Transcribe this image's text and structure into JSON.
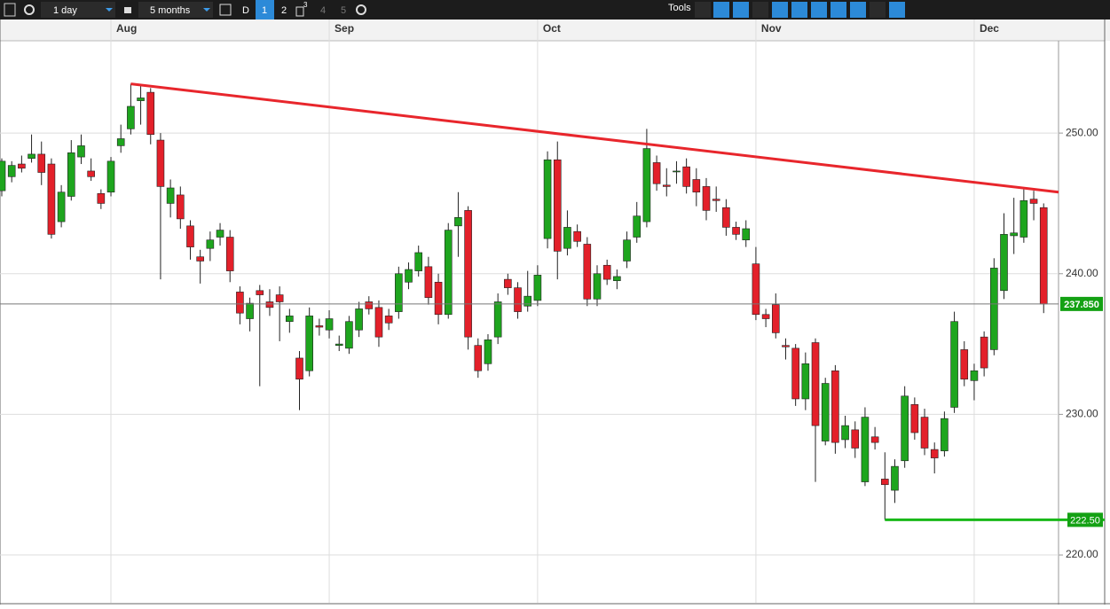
{
  "toolbar": {
    "interval": "1 day",
    "range": "5 months",
    "mode": "D",
    "layouts": [
      "1",
      "2",
      "3",
      "4",
      "5"
    ],
    "tools": "Tools"
  },
  "chart_data": {
    "type": "candlestick",
    "categories": [
      null,
      null,
      null,
      null,
      null,
      null,
      null,
      null,
      null,
      null,
      null,
      "Aug",
      null,
      null,
      null,
      null,
      null,
      null,
      null,
      null,
      null,
      null,
      null,
      null,
      null,
      null,
      null,
      null,
      null,
      null,
      null,
      null,
      null,
      "Sep",
      null,
      null,
      null,
      null,
      null,
      null,
      null,
      null,
      null,
      null,
      null,
      null,
      null,
      null,
      null,
      null,
      null,
      null,
      null,
      null,
      "Oct",
      null,
      null,
      null,
      null,
      null,
      null,
      null,
      null,
      null,
      null,
      null,
      null,
      null,
      null,
      null,
      null,
      null,
      null,
      null,
      null,
      null,
      "Nov",
      null,
      null,
      null,
      null,
      null,
      null,
      null,
      null,
      null,
      null,
      null,
      null,
      null,
      null,
      null,
      null,
      null,
      null,
      null,
      null,
      null,
      "Dec",
      null,
      null,
      null,
      null,
      null,
      null,
      null
    ],
    "open": [
      245.9,
      246.9,
      247.8,
      248.2,
      248.5,
      247.8,
      243.7,
      245.5,
      248.3,
      247.3,
      245.7,
      245.8,
      249.1,
      250.3,
      252.3,
      252.9,
      249.5,
      245.0,
      245.6,
      243.4,
      241.2,
      241.8,
      242.6,
      242.6,
      238.7,
      236.8,
      238.8,
      238.0,
      238.5,
      236.6,
      234.0,
      233.1,
      236.3,
      236.0,
      234.9,
      234.7,
      236.0,
      238.0,
      237.6,
      237.0,
      237.3,
      239.4,
      240.2,
      240.5,
      239.4,
      237.1,
      243.4,
      244.5,
      234.9,
      233.6,
      235.5,
      239.6,
      239.0,
      237.7,
      238.1,
      242.5,
      248.1,
      241.8,
      243.0,
      242.1,
      238.2,
      240.6,
      239.5,
      240.9,
      242.6,
      243.7,
      247.9,
      246.3,
      247.3,
      247.6,
      246.7,
      246.2,
      245.3,
      244.7,
      243.3,
      242.4,
      240.7,
      237.1,
      237.8,
      234.9,
      234.7,
      231.1,
      235.1,
      228.1,
      233.1,
      228.2,
      228.9,
      225.2,
      228.4,
      225.4,
      224.6,
      226.7,
      230.7,
      229.8,
      227.5,
      227.4,
      230.5,
      234.6,
      232.4,
      235.5,
      234.6,
      238.8,
      242.7,
      242.6,
      245.3,
      244.7
    ],
    "high": [
      248.2,
      248.0,
      248.4,
      249.9,
      249.4,
      248.2,
      246.3,
      249.5,
      249.9,
      248.2,
      246.0,
      248.3,
      250.6,
      253.5,
      253.5,
      253.2,
      250.0,
      246.7,
      246.2,
      243.8,
      241.7,
      243.0,
      243.6,
      243.1,
      239.1,
      238.3,
      239.2,
      238.9,
      239.1,
      237.5,
      234.5,
      237.6,
      236.8,
      237.4,
      235.6,
      237.0,
      238.0,
      238.4,
      238.1,
      237.5,
      240.5,
      240.8,
      242.0,
      241.2,
      240.0,
      243.6,
      245.8,
      244.8,
      235.4,
      235.7,
      238.6,
      240.0,
      239.4,
      240.2,
      240.6,
      248.7,
      249.4,
      244.5,
      243.5,
      242.6,
      240.6,
      241.0,
      240.3,
      243.0,
      245.1,
      250.3,
      248.4,
      247.5,
      248.0,
      248.2,
      247.5,
      246.8,
      246.2,
      245.3,
      243.7,
      243.8,
      241.9,
      237.5,
      238.6,
      235.4,
      235.0,
      234.4,
      235.4,
      232.6,
      233.5,
      229.9,
      229.5,
      230.5,
      229.1,
      227.3,
      226.8,
      232.0,
      231.2,
      230.4,
      228.0,
      230.2,
      237.3,
      235.2,
      233.6,
      235.9,
      241.1,
      244.3,
      245.4,
      246.0,
      245.9,
      245.0
    ],
    "low": [
      245.5,
      246.5,
      247.2,
      247.9,
      246.3,
      242.5,
      243.3,
      245.2,
      247.8,
      246.6,
      244.6,
      245.5,
      248.6,
      249.9,
      250.6,
      249.2,
      239.6,
      244.0,
      243.2,
      241.0,
      239.3,
      240.9,
      242.0,
      239.4,
      236.4,
      235.9,
      232.0,
      237.0,
      235.2,
      235.8,
      230.3,
      232.7,
      235.6,
      235.4,
      234.5,
      234.3,
      235.5,
      237.1,
      234.8,
      236.0,
      236.8,
      238.9,
      239.8,
      237.8,
      236.4,
      236.8,
      241.2,
      234.6,
      232.6,
      233.1,
      235.0,
      238.5,
      236.8,
      237.3,
      237.7,
      241.8,
      239.6,
      241.3,
      241.9,
      237.7,
      237.7,
      239.2,
      238.9,
      240.4,
      242.2,
      243.3,
      245.9,
      245.5,
      246.4,
      245.7,
      244.8,
      243.8,
      244.4,
      242.7,
      242.4,
      241.9,
      236.7,
      236.2,
      235.4,
      233.9,
      230.6,
      230.3,
      225.2,
      227.8,
      227.2,
      227.6,
      226.9,
      224.9,
      227.5,
      222.5,
      223.7,
      226.2,
      228.2,
      227.1,
      225.8,
      227.0,
      230.1,
      232.0,
      231.0,
      232.7,
      234.2,
      238.2,
      241.4,
      242.2,
      243.8,
      237.2
    ],
    "close": [
      248.0,
      247.7,
      247.5,
      248.5,
      247.2,
      242.8,
      245.8,
      248.6,
      249.1,
      246.9,
      245.0,
      248.0,
      249.6,
      251.9,
      252.5,
      249.9,
      246.2,
      246.1,
      243.9,
      241.9,
      240.9,
      242.4,
      243.1,
      240.2,
      237.2,
      237.9,
      238.5,
      237.6,
      238.0,
      237.0,
      232.5,
      237.0,
      236.2,
      236.8,
      235.0,
      236.6,
      237.5,
      237.5,
      235.5,
      236.5,
      240.0,
      240.3,
      241.5,
      238.3,
      237.1,
      243.1,
      244.0,
      235.5,
      233.1,
      235.3,
      238.0,
      239.0,
      237.3,
      238.4,
      239.9,
      248.1,
      241.6,
      243.3,
      242.3,
      238.2,
      240.0,
      239.6,
      239.8,
      242.4,
      244.1,
      248.9,
      246.4,
      246.2,
      247.3,
      246.2,
      245.8,
      244.5,
      245.2,
      243.3,
      242.8,
      243.2,
      237.1,
      236.8,
      235.8,
      234.8,
      231.1,
      233.6,
      229.2,
      232.2,
      228.0,
      229.2,
      227.6,
      229.8,
      228.0,
      225.0,
      226.3,
      231.3,
      228.7,
      227.6,
      226.9,
      229.7,
      236.6,
      232.5,
      233.1,
      233.3,
      240.4,
      242.8,
      242.9,
      245.2,
      245.0,
      237.85
    ],
    "up_color": "#1ea51e",
    "down_color": "#e3202a",
    "xlim": [
      -0.18,
      106.5
    ],
    "ylim": [
      216.6,
      256.5
    ],
    "yticks": [
      {
        "value": 220,
        "label": "220.00"
      },
      {
        "value": 230,
        "label": "230.00"
      },
      {
        "value": 240,
        "label": "240.00"
      },
      {
        "value": 250,
        "label": "250.00"
      }
    ],
    "grid": true,
    "trendline": {
      "from": [
        13,
        253.5
      ],
      "to": [
        106.5,
        245.8
      ],
      "color": "#e8262c"
    },
    "support": {
      "value": 222.5,
      "label": "222.50",
      "start": 89,
      "color": "#18b818"
    },
    "last_price": {
      "value": 237.85,
      "label": "237.850"
    }
  }
}
